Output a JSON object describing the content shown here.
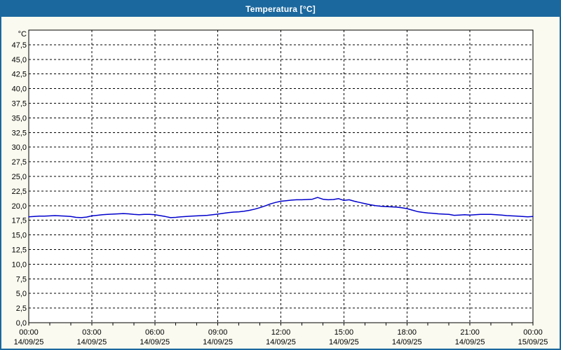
{
  "window": {
    "title": "Temperatura [°C]"
  },
  "colors": {
    "titlebar_bg": "#1B689E",
    "titlebar_text": "#FFFFFF",
    "window_border": "#1B689E",
    "chart_bg": "#FAFAF0",
    "plot_bg": "#FFFFFF",
    "plot_border": "#000000",
    "gridline": "#000000",
    "axis_text": "#000000",
    "series_line": "#0000CC"
  },
  "chart_data": {
    "type": "line",
    "title": "Temperatura [°C]",
    "y_unit_label": "°C",
    "ylim": [
      0,
      50
    ],
    "y_tick_step": 2.5,
    "y_tick_labels": [
      "0,0",
      "2,5",
      "5,0",
      "7,5",
      "10,0",
      "12,5",
      "15,0",
      "17,5",
      "20,0",
      "22,5",
      "25,0",
      "27,5",
      "30,0",
      "32,5",
      "35,0",
      "37,5",
      "40,0",
      "42,5",
      "45,0",
      "47,5"
    ],
    "xlim_hours": [
      0,
      24
    ],
    "x_major_step_hours": 3,
    "x_minor_step_hours": 1,
    "grid": "dashed",
    "legend_position": "none",
    "x_ticks": [
      {
        "time": "00:00",
        "date": "14/09/25"
      },
      {
        "time": "03:00",
        "date": "14/09/25"
      },
      {
        "time": "06:00",
        "date": "14/09/25"
      },
      {
        "time": "09:00",
        "date": "14/09/25"
      },
      {
        "time": "12:00",
        "date": "14/09/25"
      },
      {
        "time": "15:00",
        "date": "14/09/25"
      },
      {
        "time": "18:00",
        "date": "14/09/25"
      },
      {
        "time": "21:00",
        "date": "14/09/25"
      },
      {
        "time": "00:00",
        "date": "15/09/25"
      }
    ],
    "series": [
      {
        "name": "Temperatura",
        "color": "#0000CC",
        "sample_interval_minutes": 15,
        "x_hours": [
          0,
          0.25,
          0.5,
          0.75,
          1,
          1.25,
          1.5,
          1.75,
          2,
          2.25,
          2.5,
          2.75,
          3,
          3.25,
          3.5,
          3.75,
          4,
          4.25,
          4.5,
          4.75,
          5,
          5.25,
          5.5,
          5.75,
          6,
          6.25,
          6.5,
          6.75,
          7,
          7.25,
          7.5,
          7.75,
          8,
          8.25,
          8.5,
          8.75,
          9,
          9.25,
          9.5,
          9.75,
          10,
          10.25,
          10.5,
          10.75,
          11,
          11.25,
          11.5,
          11.75,
          12,
          12.25,
          12.5,
          12.75,
          13,
          13.25,
          13.5,
          13.75,
          14,
          14.25,
          14.5,
          14.75,
          15,
          15.25,
          15.5,
          15.75,
          16,
          16.25,
          16.5,
          16.75,
          17,
          17.25,
          17.5,
          17.75,
          18,
          18.25,
          18.5,
          18.75,
          19,
          19.25,
          19.5,
          19.75,
          20,
          20.25,
          20.5,
          20.75,
          21,
          21.25,
          21.5,
          21.75,
          22,
          22.25,
          22.5,
          22.75,
          23,
          23.25,
          23.5,
          23.75,
          24
        ],
        "values": [
          18.1,
          18.15,
          18.2,
          18.2,
          18.25,
          18.3,
          18.25,
          18.2,
          18.15,
          18.0,
          17.95,
          18.05,
          18.25,
          18.35,
          18.45,
          18.5,
          18.55,
          18.6,
          18.65,
          18.6,
          18.5,
          18.45,
          18.5,
          18.5,
          18.45,
          18.3,
          18.15,
          17.95,
          18.0,
          18.1,
          18.15,
          18.2,
          18.25,
          18.3,
          18.35,
          18.45,
          18.55,
          18.7,
          18.8,
          18.9,
          18.95,
          19.05,
          19.2,
          19.4,
          19.65,
          19.95,
          20.3,
          20.55,
          20.75,
          20.85,
          20.95,
          21.0,
          21.0,
          21.05,
          21.1,
          21.4,
          21.1,
          21.0,
          21.05,
          21.2,
          20.9,
          21.0,
          20.75,
          20.55,
          20.35,
          20.15,
          20.0,
          19.9,
          19.85,
          19.8,
          19.75,
          19.65,
          19.5,
          19.25,
          19.0,
          18.85,
          18.75,
          18.7,
          18.6,
          18.55,
          18.5,
          18.35,
          18.4,
          18.45,
          18.4,
          18.45,
          18.5,
          18.5,
          18.5,
          18.45,
          18.4,
          18.3,
          18.25,
          18.2,
          18.15,
          18.1,
          18.15
        ]
      }
    ]
  }
}
